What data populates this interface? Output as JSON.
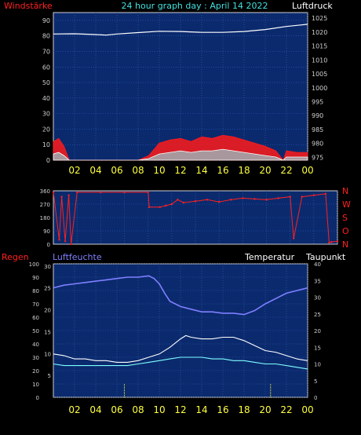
{
  "colors": {
    "background": "#000000",
    "plot_bg": "#0b2a6e",
    "grid": "#2f5fb3",
    "axis": "#cfcfcf",
    "wind_label": "#ff2020",
    "title": "#40e0e0",
    "pressure": "#ffffff",
    "wind_gust": "#ff1a1a",
    "wind_avg": "#7fffff",
    "wind_base": "#ffffff",
    "direction": "#ff2020",
    "dir_labels": "#ff2020",
    "rain": "#ffff40",
    "humidity": "#7f7fff",
    "temperature": "#ffffff",
    "dewpoint": "#7fffff",
    "hour_labels": "#ffff40"
  },
  "chart_data": [
    {
      "type": "line",
      "title": "24 hour graph day : April 14 2022",
      "ylabel_left": "Windstärke",
      "ylabel_right": "Luftdruck",
      "x_ticks": [
        "02",
        "04",
        "06",
        "08",
        "10",
        "12",
        "14",
        "16",
        "18",
        "20",
        "22",
        "00"
      ],
      "y_left_ticks": [
        "90",
        "80",
        "70",
        "60",
        "50",
        "40",
        "30",
        "20",
        "10",
        "0"
      ],
      "y_right_ticks": [
        "1025",
        "1020",
        "1015",
        "1010",
        "1005",
        "1000",
        "995",
        "990",
        "985",
        "980",
        "975"
      ],
      "ylim_left": [
        0,
        95
      ],
      "ylim_right": [
        974,
        1027
      ],
      "x_range_hours": [
        0,
        24
      ],
      "series": [
        {
          "key": "pressure",
          "axis": "right",
          "x": [
            0,
            2,
            4,
            5,
            6,
            8,
            10,
            12,
            14,
            16,
            18,
            20,
            22,
            24
          ],
          "y": [
            1019.3,
            1019.4,
            1019.1,
            1018.9,
            1019.3,
            1019.8,
            1020.3,
            1020.2,
            1019.9,
            1019.9,
            1020.2,
            1020.9,
            1022.0,
            1022.8
          ]
        },
        {
          "key": "wind_gust",
          "axis": "left",
          "x": [
            0,
            0.5,
            1,
            1.5,
            2,
            6,
            8,
            9,
            10,
            11,
            12,
            13,
            14,
            15,
            16,
            17,
            18,
            19,
            20,
            21,
            21.7,
            22,
            23,
            24
          ],
          "y": [
            12,
            14,
            9,
            0,
            0,
            0,
            0,
            3,
            11,
            13,
            14,
            12,
            15,
            14,
            16,
            15,
            13,
            11,
            9,
            6,
            0,
            6,
            5,
            5
          ]
        },
        {
          "key": "wind_avg",
          "axis": "left",
          "x": [
            0,
            0.5,
            1,
            1.5,
            2,
            8,
            9,
            10,
            11,
            12,
            13,
            14,
            15,
            16,
            17,
            18,
            19,
            20,
            21,
            21.7,
            22,
            23,
            24
          ],
          "y": [
            4,
            5,
            3,
            0,
            0,
            0,
            1,
            4,
            5,
            6,
            5,
            6,
            6,
            7,
            6,
            5,
            4,
            3,
            2,
            0,
            2,
            2,
            2
          ]
        }
      ]
    },
    {
      "type": "scatter",
      "ylabel_right": [
        "N",
        "W",
        "S",
        "O",
        "N"
      ],
      "y_left_ticks": [
        "360",
        "270",
        "180",
        "90",
        "0"
      ],
      "ylim": [
        0,
        360
      ],
      "series": [
        {
          "key": "direction",
          "x": [
            0,
            0.5,
            0.7,
            1,
            1.3,
            1.5,
            2,
            4,
            6,
            8,
            8.1,
            9,
            9.5,
            10,
            10.5,
            11,
            12,
            13,
            14,
            15,
            16,
            17,
            18,
            19,
            20,
            20.3,
            21,
            22,
            23,
            23.3,
            23.5,
            24
          ],
          "y": [
            350,
            30,
            320,
            20,
            330,
            0,
            350,
            350,
            350,
            350,
            250,
            250,
            260,
            270,
            300,
            280,
            290,
            300,
            285,
            300,
            310,
            305,
            300,
            310,
            320,
            40,
            320,
            330,
            340,
            10,
            15,
            20
          ]
        }
      ]
    },
    {
      "type": "line",
      "ylabel_left": "Regen",
      "ylabel_left2": "Luftfeuchte",
      "ylabel_temp": "Temperatur",
      "ylabel_right": "Taupunkt",
      "x_ticks": [
        "02",
        "04",
        "06",
        "08",
        "10",
        "12",
        "14",
        "16",
        "18",
        "20",
        "22",
        "00"
      ],
      "y_left_ticks": [
        "100",
        "90",
        "80",
        "70",
        "60",
        "50",
        "40",
        "30",
        "20",
        "10",
        "0"
      ],
      "y_left2_ticks": [
        "30",
        "25",
        "20",
        "15",
        "10",
        "5"
      ],
      "y_right_ticks": [
        "40",
        "35",
        "30",
        "25",
        "20",
        "15",
        "10",
        "5",
        "0"
      ],
      "ylim_left": [
        0,
        100
      ],
      "ylim_right": [
        0,
        40
      ],
      "series": [
        {
          "key": "humidity",
          "axis": "left",
          "x": [
            0,
            1,
            2,
            3,
            4,
            5,
            6,
            7,
            8,
            9,
            9.5,
            10,
            10.5,
            11,
            12,
            13,
            14,
            15,
            16,
            17,
            18,
            19,
            20,
            21,
            22,
            23,
            24
          ],
          "y": [
            82,
            84,
            85,
            86,
            87,
            88,
            89,
            90,
            90,
            91,
            89,
            85,
            78,
            72,
            68,
            66,
            64,
            64,
            63,
            63,
            62,
            65,
            70,
            74,
            78,
            80,
            82
          ]
        },
        {
          "key": "temperature",
          "axis": "right",
          "x": [
            0,
            1,
            2,
            3,
            4,
            5,
            6,
            7,
            8,
            9,
            10,
            11,
            12,
            12.5,
            13,
            14,
            15,
            16,
            17,
            18,
            19,
            20,
            21,
            22,
            23,
            24
          ],
          "y": [
            13,
            12.5,
            11.5,
            11.5,
            11,
            11,
            10.5,
            10.5,
            11,
            12,
            13,
            15,
            17.5,
            18.5,
            18,
            17.5,
            17.5,
            18,
            18,
            17,
            15.5,
            14,
            13.5,
            12.5,
            11.5,
            11
          ]
        },
        {
          "key": "dewpoint",
          "axis": "right",
          "x": [
            0,
            1,
            2,
            3,
            4,
            5,
            6,
            7,
            8,
            9,
            10,
            11,
            12,
            13,
            14,
            15,
            16,
            17,
            18,
            19,
            20,
            21,
            22,
            23,
            24
          ],
          "y": [
            10,
            9.5,
            9.5,
            9.5,
            9.5,
            9.5,
            9.5,
            9.5,
            10,
            10.5,
            11,
            11.5,
            12,
            12,
            12,
            11.5,
            11.5,
            11,
            11,
            10.5,
            10,
            10,
            9.5,
            9,
            8.5
          ]
        },
        {
          "key": "rain",
          "axis": "left",
          "x": [
            6.7,
            20.5
          ],
          "y": [
            10,
            10
          ]
        }
      ]
    }
  ]
}
